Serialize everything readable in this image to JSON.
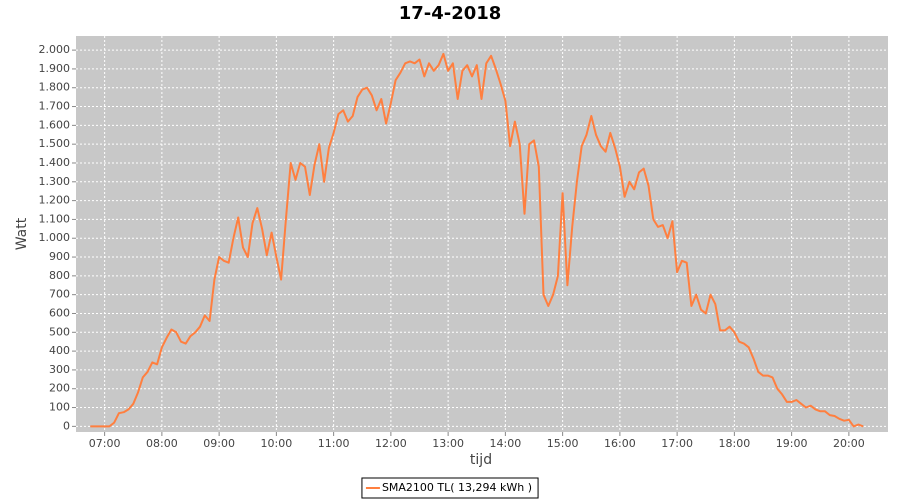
{
  "chart_data": {
    "type": "line",
    "title": "17-4-2018",
    "x_label": "tijd",
    "y_label": "Watt",
    "xlim": [
      "06:30",
      "20:41"
    ],
    "xticks": [
      "07:00",
      "08:00",
      "09:00",
      "10:00",
      "11:00",
      "12:00",
      "13:00",
      "14:00",
      "15:00",
      "16:00",
      "17:00",
      "18:00",
      "19:00",
      "20:00"
    ],
    "ylim": [
      -30,
      2075
    ],
    "yticks": [
      0,
      100,
      200,
      300,
      400,
      500,
      600,
      700,
      800,
      900,
      {
        "value": 1000,
        "label": "1.000"
      },
      {
        "value": 1100,
        "label": "1.100"
      },
      {
        "value": 1200,
        "label": "1.200"
      },
      {
        "value": 1300,
        "label": "1.300"
      },
      {
        "value": 1400,
        "label": "1.400"
      },
      {
        "value": 1500,
        "label": "1.500"
      },
      {
        "value": 1600,
        "label": "1.600"
      },
      {
        "value": 1700,
        "label": "1.700"
      },
      {
        "value": 1800,
        "label": "1.800"
      },
      {
        "value": 1900,
        "label": "1.900"
      },
      {
        "value": 2000,
        "label": "2.000"
      }
    ],
    "grid": true,
    "legend": "bottom",
    "x": [
      "06:45",
      "06:55",
      "07:05",
      "07:10",
      "07:15",
      "07:20",
      "07:25",
      "07:30",
      "07:35",
      "07:40",
      "07:45",
      "07:50",
      "07:55",
      "08:00",
      "08:05",
      "08:10",
      "08:15",
      "08:20",
      "08:25",
      "08:30",
      "08:35",
      "08:40",
      "08:45",
      "08:50",
      "08:55",
      "09:00",
      "09:05",
      "09:10",
      "09:15",
      "09:20",
      "09:25",
      "09:30",
      "09:35",
      "09:40",
      "09:45",
      "09:50",
      "09:55",
      "10:00",
      "10:05",
      "10:10",
      "10:15",
      "10:20",
      "10:25",
      "10:30",
      "10:35",
      "10:40",
      "10:45",
      "10:50",
      "10:55",
      "11:00",
      "11:05",
      "11:10",
      "11:15",
      "11:20",
      "11:25",
      "11:30",
      "11:35",
      "11:40",
      "11:45",
      "11:50",
      "11:55",
      "12:00",
      "12:05",
      "12:10",
      "12:15",
      "12:20",
      "12:25",
      "12:30",
      "12:35",
      "12:40",
      "12:45",
      "12:50",
      "12:55",
      "13:00",
      "13:05",
      "13:10",
      "13:15",
      "13:20",
      "13:25",
      "13:30",
      "13:35",
      "13:40",
      "13:45",
      "13:50",
      "13:55",
      "14:00",
      "14:05",
      "14:10",
      "14:15",
      "14:20",
      "14:25",
      "14:30",
      "14:35",
      "14:40",
      "14:45",
      "14:50",
      "14:55",
      "15:00",
      "15:05",
      "15:10",
      "15:15",
      "15:20",
      "15:25",
      "15:30",
      "15:35",
      "15:40",
      "15:45",
      "15:50",
      "15:55",
      "16:00",
      "16:05",
      "16:10",
      "16:15",
      "16:20",
      "16:25",
      "16:30",
      "16:35",
      "16:40",
      "16:45",
      "16:50",
      "16:55",
      "17:00",
      "17:05",
      "17:10",
      "17:15",
      "17:20",
      "17:25",
      "17:30",
      "17:35",
      "17:40",
      "17:45",
      "17:50",
      "17:55",
      "18:00",
      "18:05",
      "18:10",
      "18:15",
      "18:20",
      "18:25",
      "18:30",
      "18:35",
      "18:40",
      "18:45",
      "18:50",
      "18:55",
      "19:00",
      "19:05",
      "19:10",
      "19:15",
      "19:20",
      "19:25",
      "19:30",
      "19:35",
      "19:40",
      "19:45",
      "19:50",
      "19:55",
      "20:00",
      "20:05",
      "20:10",
      "20:15"
    ],
    "series": [
      {
        "name": "SMA2100 TL( 13,294 kWh )",
        "color": "#ff7f3f",
        "values": [
          0,
          0,
          0,
          20,
          70,
          75,
          90,
          120,
          180,
          260,
          290,
          340,
          330,
          420,
          470,
          515,
          500,
          450,
          440,
          480,
          500,
          530,
          590,
          560,
          780,
          900,
          880,
          870,
          1000,
          1110,
          950,
          900,
          1080,
          1160,
          1050,
          910,
          1030,
          900,
          780,
          1100,
          1400,
          1310,
          1400,
          1380,
          1230,
          1390,
          1500,
          1300,
          1480,
          1560,
          1660,
          1680,
          1620,
          1650,
          1750,
          1790,
          1800,
          1760,
          1680,
          1740,
          1610,
          1720,
          1840,
          1880,
          1930,
          1940,
          1930,
          1950,
          1860,
          1930,
          1890,
          1920,
          1980,
          1890,
          1930,
          1740,
          1890,
          1920,
          1860,
          1920,
          1740,
          1930,
          1970,
          1900,
          1820,
          1730,
          1490,
          1620,
          1500,
          1130,
          1500,
          1520,
          1380,
          700,
          640,
          700,
          800,
          1240,
          750,
          1060,
          1300,
          1490,
          1550,
          1650,
          1550,
          1490,
          1460,
          1560,
          1480,
          1380,
          1220,
          1300,
          1260,
          1350,
          1370,
          1280,
          1100,
          1060,
          1070,
          1000,
          1090,
          820,
          880,
          870,
          640,
          700,
          620,
          600,
          700,
          650,
          510,
          510,
          530,
          500,
          450,
          440,
          420,
          360,
          290,
          270,
          270,
          260,
          200,
          170,
          130,
          130,
          140,
          120,
          100,
          110,
          90,
          80,
          80,
          60,
          55,
          40,
          30,
          35,
          0,
          10,
          0
        ]
      }
    ]
  }
}
